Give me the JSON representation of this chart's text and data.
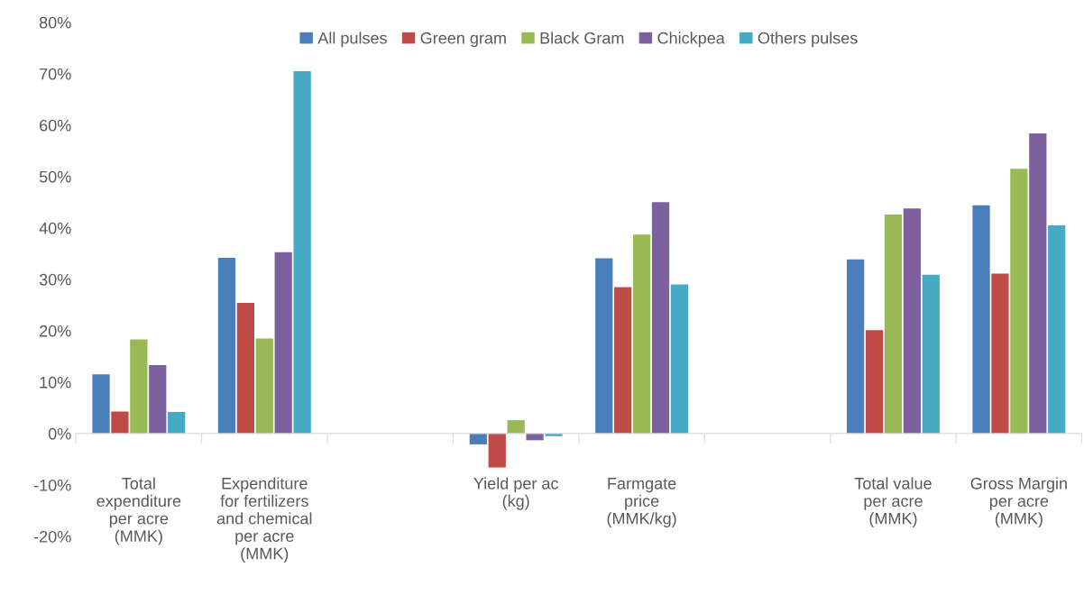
{
  "chart_data": {
    "type": "bar",
    "categories": [
      "Total\nexpenditure\nper acre\n(MMK)",
      "Expenditure\nfor fertilizers\nand chemical\nper acre\n(MMK)",
      null,
      "Yield per ac\n(kg)",
      "Farmgate\nprice\n(MMK/kg)",
      null,
      "Total value\nper acre\n(MMK)",
      "Gross Margin\nper acre\n(MMK)"
    ],
    "series": [
      {
        "name": "All pulses",
        "color": "#4a7ebb",
        "values": [
          11.5,
          34.2,
          null,
          -2.1,
          34.1,
          null,
          33.9,
          44.4
        ]
      },
      {
        "name": "Green gram",
        "color": "#be4b48",
        "values": [
          4.3,
          25.4,
          null,
          -6.6,
          28.5,
          null,
          20.1,
          31.1
        ]
      },
      {
        "name": "Black Gram",
        "color": "#98b954",
        "values": [
          18.3,
          18.5,
          null,
          2.6,
          38.7,
          null,
          42.6,
          51.5
        ]
      },
      {
        "name": "Chickpea",
        "color": "#7d60a0",
        "values": [
          13.3,
          35.3,
          null,
          -1.3,
          45.0,
          null,
          43.8,
          58.4
        ]
      },
      {
        "name": "Others pulses",
        "color": "#46aac5",
        "values": [
          4.2,
          70.5,
          null,
          -0.5,
          29.0,
          null,
          30.9,
          40.5
        ]
      }
    ],
    "ylim": [
      -20,
      80
    ],
    "yticks": [
      {
        "value": -20,
        "label": "-20%"
      },
      {
        "value": -10,
        "label": "-10%"
      },
      {
        "value": 0,
        "label": "0%"
      },
      {
        "value": 10,
        "label": "10%"
      },
      {
        "value": 20,
        "label": "20%"
      },
      {
        "value": 30,
        "label": "30%"
      },
      {
        "value": 40,
        "label": "40%"
      },
      {
        "value": 50,
        "label": "50%"
      },
      {
        "value": 60,
        "label": "60%"
      },
      {
        "value": 70,
        "label": "70%"
      },
      {
        "value": 80,
        "label": "80%"
      }
    ],
    "legend": "top"
  }
}
